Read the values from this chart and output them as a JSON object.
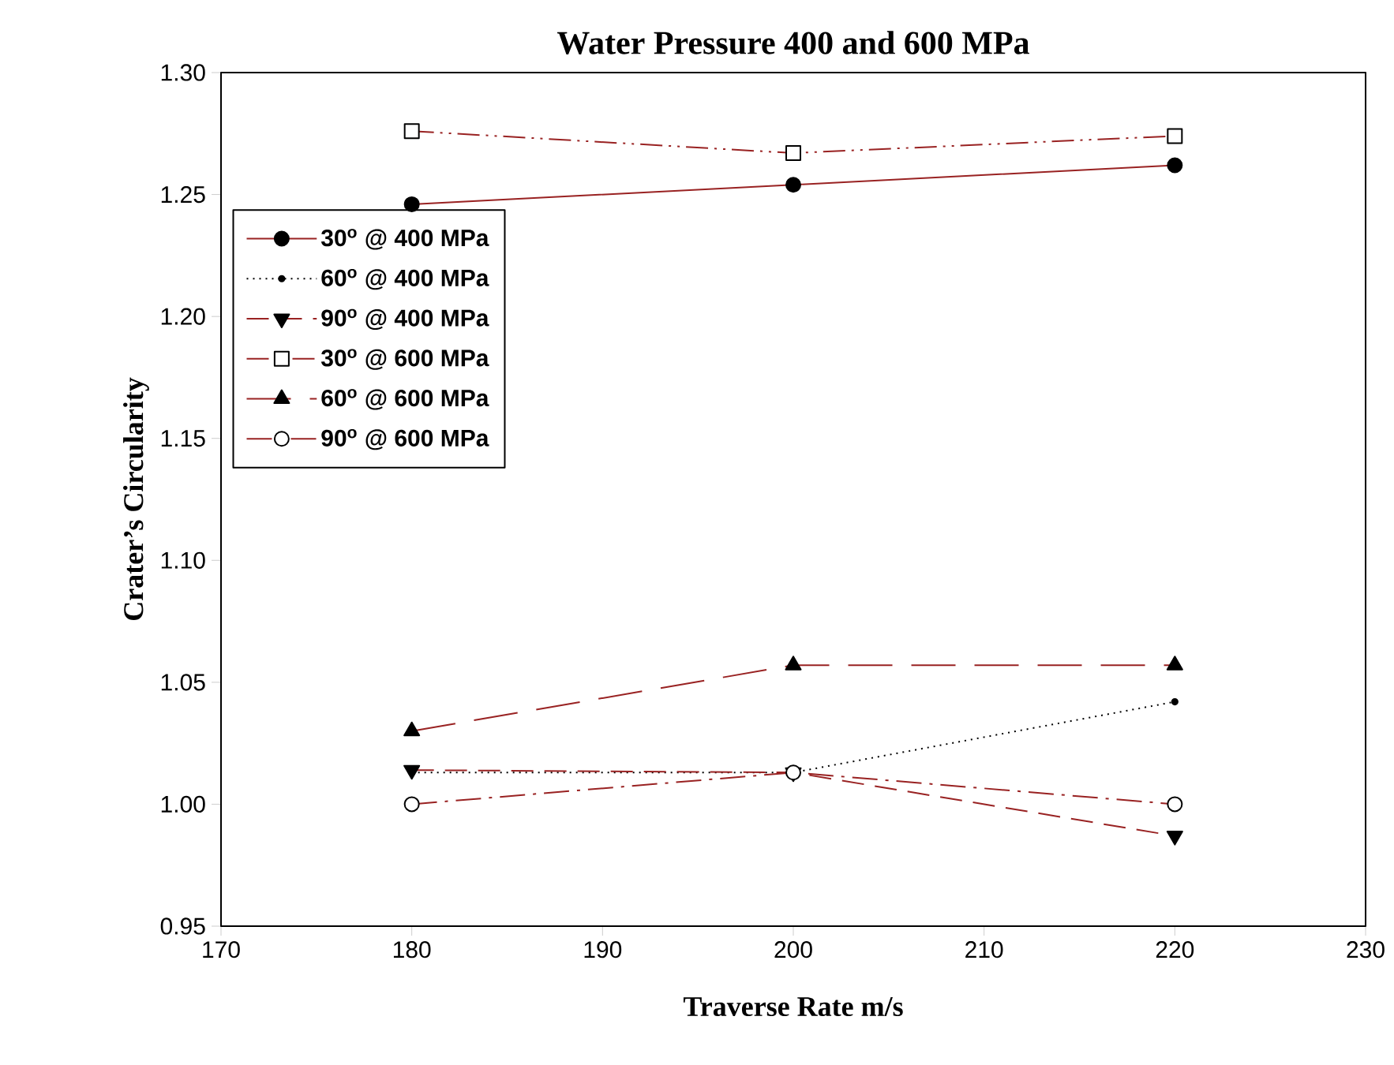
{
  "chart_data": {
    "type": "line",
    "title": "Water Pressure 400 and 600 MPa",
    "xlabel": "Traverse Rate m/s",
    "ylabel": "Crater’s Circularity",
    "x": [
      180,
      200,
      220
    ],
    "series": [
      {
        "name": "30$^{o}$ @ 400 MPa",
        "color": "#992222",
        "marker": "circle",
        "line_style": "solid",
        "values": [
          1.246,
          1.254,
          1.262
        ]
      },
      {
        "name": "60$^{o}$ @ 400 MPa",
        "color": "#000000",
        "marker": "circle",
        "line_style": "dotted",
        "values": [
          1.013,
          1.013,
          1.042
        ]
      },
      {
        "name": "90$^{o}$ @ 400 MPa",
        "color": "#992222",
        "marker": "triangle",
        "line_style": "dashed",
        "values": [
          1.014,
          1.013,
          0.987
        ]
      },
      {
        "name": "30$^{o}$ @ 600 MPa",
        "color": "#992222",
        "marker": "square",
        "line_style": "dashdotdotted",
        "values": [
          1.276,
          1.267,
          1.274
        ]
      },
      {
        "name": "60$^{o}$ @ 600 MPa",
        "color": "#992222",
        "marker": "triangle",
        "line_style": "longdashed",
        "values": [
          1.03,
          1.057,
          1.057
        ]
      },
      {
        "name": "90$^{o}$ @ 600 MPa",
        "color": "#992222",
        "marker": "circle",
        "line_style": "dashdotted",
        "values": [
          1.0,
          1.013,
          1.0
        ]
      }
    ],
    "xlim": [
      170,
      230
    ],
    "xticks": [
      170,
      180,
      190,
      200,
      210,
      220,
      230
    ],
    "ylim": [
      0.95,
      1.3
    ],
    "yticks": [
      {
        "value": 0.95,
        "label": "0.95"
      },
      {
        "value": 1.0,
        "label": "1.00"
      },
      {
        "value": 1.05,
        "label": "1.05"
      },
      {
        "value": 1.1,
        "label": "1.10"
      },
      {
        "value": 1.15,
        "label": "1.15"
      },
      {
        "value": 1.2,
        "label": "1.20"
      },
      {
        "value": 1.25,
        "label": "1.25"
      },
      {
        "value": 1.3,
        "label": "1.30"
      }
    ],
    "grid": false,
    "legend": "top left"
  }
}
